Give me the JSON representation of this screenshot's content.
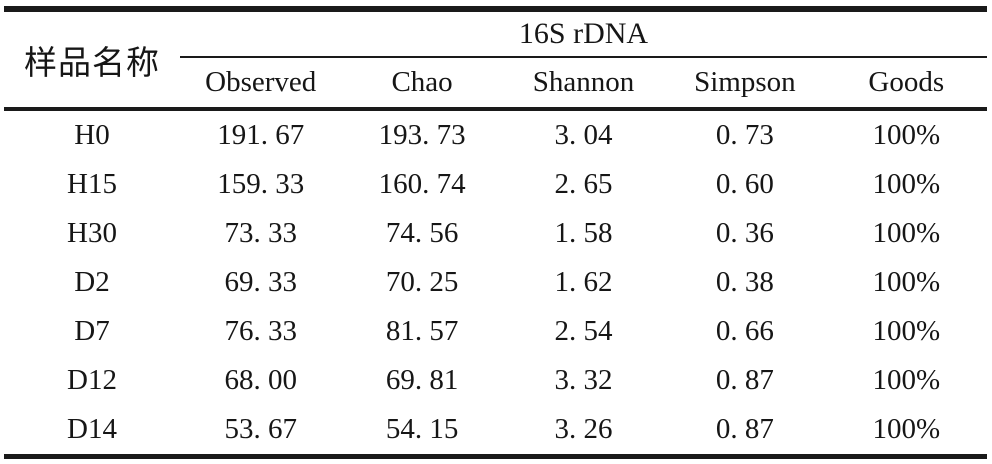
{
  "table": {
    "corner_header": "样品名称",
    "group_header": "16S rDNA",
    "columns": [
      "Observed",
      "Chao",
      "Shannon",
      "Simpson",
      "Goods"
    ],
    "rows": [
      {
        "label": "H0",
        "values": [
          "191. 67",
          "193. 73",
          "3. 04",
          "0. 73",
          "100%"
        ]
      },
      {
        "label": "H15",
        "values": [
          "159. 33",
          "160. 74",
          "2. 65",
          "0. 60",
          "100%"
        ]
      },
      {
        "label": "H30",
        "values": [
          "73. 33",
          "74. 56",
          "1. 58",
          "0. 36",
          "100%"
        ]
      },
      {
        "label": "D2",
        "values": [
          "69. 33",
          "70. 25",
          "1. 62",
          "0. 38",
          "100%"
        ]
      },
      {
        "label": "D7",
        "values": [
          "76. 33",
          "81. 57",
          "2. 54",
          "0. 66",
          "100%"
        ]
      },
      {
        "label": "D12",
        "values": [
          "68. 00",
          "69. 81",
          "3. 32",
          "0. 87",
          "100%"
        ]
      },
      {
        "label": "D14",
        "values": [
          "53. 67",
          "54. 15",
          "3. 26",
          "0. 87",
          "100%"
        ]
      }
    ]
  },
  "colors": {
    "background": "#ffffff",
    "text": "#161616",
    "rule": "#1a1a1a"
  }
}
